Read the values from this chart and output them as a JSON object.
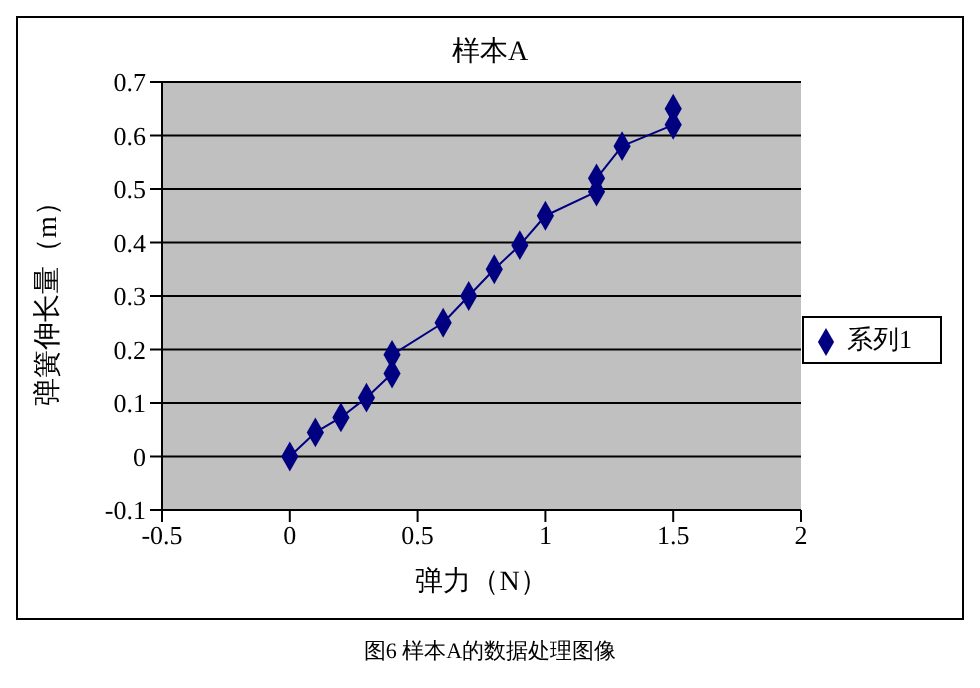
{
  "chart_data": {
    "type": "line",
    "title": "样本A",
    "xlabel": "弹力（N）",
    "ylabel": "弹簧伸长量（m）",
    "annotations": [
      "图6  样本A的数据处理图像"
    ],
    "series": [
      {
        "name": "系列1",
        "color": "#000080",
        "x": [
          0,
          0.1,
          0.2,
          0.3,
          0.4,
          0.4,
          0.6,
          0.7,
          0.8,
          0.9,
          1.0,
          1.2,
          1.2,
          1.3,
          1.5,
          1.5
        ],
        "values": [
          0,
          0.045,
          0.073,
          0.11,
          0.155,
          0.19,
          0.25,
          0.3,
          0.35,
          0.395,
          0.45,
          0.495,
          0.52,
          0.58,
          0.62,
          0.65
        ]
      }
    ],
    "xlim": [
      -0.5,
      2
    ],
    "xticks": [
      -0.5,
      0,
      0.5,
      1,
      1.5,
      2
    ],
    "ylim": [
      -0.1,
      0.7
    ],
    "yticks": [
      -0.1,
      0,
      0.1,
      0.2,
      0.3,
      0.4,
      0.5,
      0.6,
      0.7
    ],
    "grid": "y",
    "legend": "right",
    "marker": "diamond",
    "line_style": "solid"
  }
}
